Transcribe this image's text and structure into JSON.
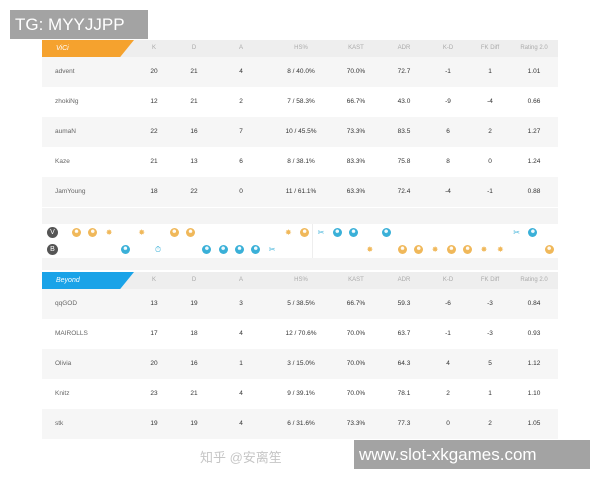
{
  "overlay": {
    "top_label": "TG: MYYJJPP",
    "bottom_label": "www.slot-xkgames.com",
    "watermark": "知乎 @安离笙"
  },
  "columns": [
    "K",
    "D",
    "A",
    "HS%",
    "KAST",
    "ADR",
    "K-D",
    "FK Diff",
    "Rating 2.0"
  ],
  "teams": [
    {
      "name": "ViCi",
      "color": "#f5a22e",
      "players": [
        [
          "advent",
          "20",
          "21",
          "4",
          "8 / 40.0%",
          "70.0%",
          "72.7",
          "-1",
          "1",
          "1.01"
        ],
        [
          "zhokiNg",
          "12",
          "21",
          "2",
          "7 / 58.3%",
          "66.7%",
          "43.0",
          "-9",
          "-4",
          "0.66"
        ],
        [
          "aumaN",
          "22",
          "16",
          "7",
          "10 / 45.5%",
          "73.3%",
          "83.5",
          "6",
          "2",
          "1.27"
        ],
        [
          "Kaze",
          "21",
          "13",
          "6",
          "8 / 38.1%",
          "83.3%",
          "75.8",
          "8",
          "0",
          "1.24"
        ],
        [
          "JamYoung",
          "18",
          "22",
          "0",
          "11 / 61.1%",
          "63.3%",
          "72.4",
          "-4",
          "-1",
          "0.88"
        ]
      ]
    },
    {
      "name": "Beyond",
      "color": "#1aa3e8",
      "players": [
        [
          "qqGOD",
          "13",
          "19",
          "3",
          "5 / 38.5%",
          "66.7%",
          "59.3",
          "-6",
          "-3",
          "0.84"
        ],
        [
          "MAIROLLS",
          "17",
          "18",
          "4",
          "12 / 70.6%",
          "70.0%",
          "63.7",
          "-1",
          "-3",
          "0.93"
        ],
        [
          "Olivia",
          "20",
          "16",
          "1",
          "3 / 15.0%",
          "70.0%",
          "64.3",
          "4",
          "5",
          "1.12"
        ],
        [
          "Knitz",
          "23",
          "21",
          "4",
          "9 / 39.1%",
          "70.0%",
          "78.1",
          "2",
          "1",
          "1.10"
        ],
        [
          "stk",
          "19",
          "19",
          "4",
          "6 / 31.6%",
          "73.3%",
          "77.3",
          "0",
          "2",
          "1.05"
        ]
      ]
    }
  ],
  "round_history": {
    "colors": {
      "t": "#f0b85a",
      "ct": "#3ab0d8"
    },
    "rounds": [
      {
        "winner": 0,
        "type": "skull"
      },
      {
        "winner": 0,
        "type": "skull"
      },
      {
        "winner": 0,
        "type": "bomb"
      },
      {
        "winner": 1,
        "type": "skull"
      },
      {
        "winner": 0,
        "type": "bomb"
      },
      {
        "winner": 1,
        "type": "timer"
      },
      {
        "winner": 0,
        "type": "skull"
      },
      {
        "winner": 0,
        "type": "skull"
      },
      {
        "winner": 1,
        "type": "skull"
      },
      {
        "winner": 1,
        "type": "skull"
      },
      {
        "winner": 1,
        "type": "skull"
      },
      {
        "winner": 1,
        "type": "skull"
      },
      {
        "winner": 1,
        "type": "defuse"
      },
      {
        "winner": 0,
        "type": "bomb"
      },
      {
        "winner": 0,
        "type": "skull"
      },
      {
        "winner": 0,
        "type": "defuse"
      },
      {
        "winner": 0,
        "type": "skull"
      },
      {
        "winner": 0,
        "type": "skull"
      },
      {
        "winner": 1,
        "type": "bomb"
      },
      {
        "winner": 0,
        "type": "skull"
      },
      {
        "winner": 1,
        "type": "skull"
      },
      {
        "winner": 1,
        "type": "skull"
      },
      {
        "winner": 1,
        "type": "bomb"
      },
      {
        "winner": 1,
        "type": "skull"
      },
      {
        "winner": 1,
        "type": "skull"
      },
      {
        "winner": 1,
        "type": "bomb"
      },
      {
        "winner": 1,
        "type": "bomb"
      },
      {
        "winner": 0,
        "type": "defuse"
      },
      {
        "winner": 0,
        "type": "skull"
      },
      {
        "winner": 1,
        "type": "skull"
      }
    ]
  }
}
